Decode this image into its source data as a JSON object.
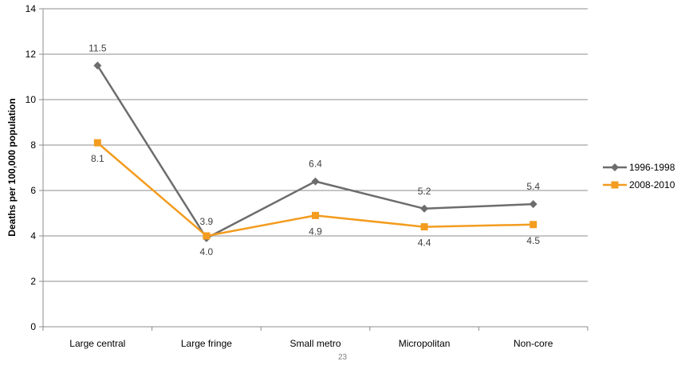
{
  "chart_data": {
    "type": "line",
    "categories": [
      "Large central",
      "Large fringe",
      "Small metro",
      "Micropolitan",
      "Non-core"
    ],
    "ylabel": "Deaths per 100,000 population",
    "xlabel": "",
    "ylim": [
      0,
      14
    ],
    "yticks": [
      0,
      2,
      4,
      6,
      8,
      10,
      12,
      14
    ],
    "grid": true,
    "legend_position": "right",
    "series": [
      {
        "name": "1996-1998",
        "values": [
          11.5,
          3.9,
          6.4,
          5.2,
          5.4
        ],
        "labels": [
          "11.5",
          "3.9",
          "6.4",
          "5.2",
          "5.4"
        ],
        "color": "#6d6d6d",
        "marker": "diamond"
      },
      {
        "name": "2008-2010",
        "values": [
          8.1,
          4.0,
          4.9,
          4.4,
          4.5
        ],
        "labels": [
          "8.1",
          "4.0",
          "4.9",
          "4.4",
          "4.5"
        ],
        "color": "#f39c1f",
        "marker": "square"
      }
    ]
  },
  "footer": {
    "page_number": "23"
  }
}
